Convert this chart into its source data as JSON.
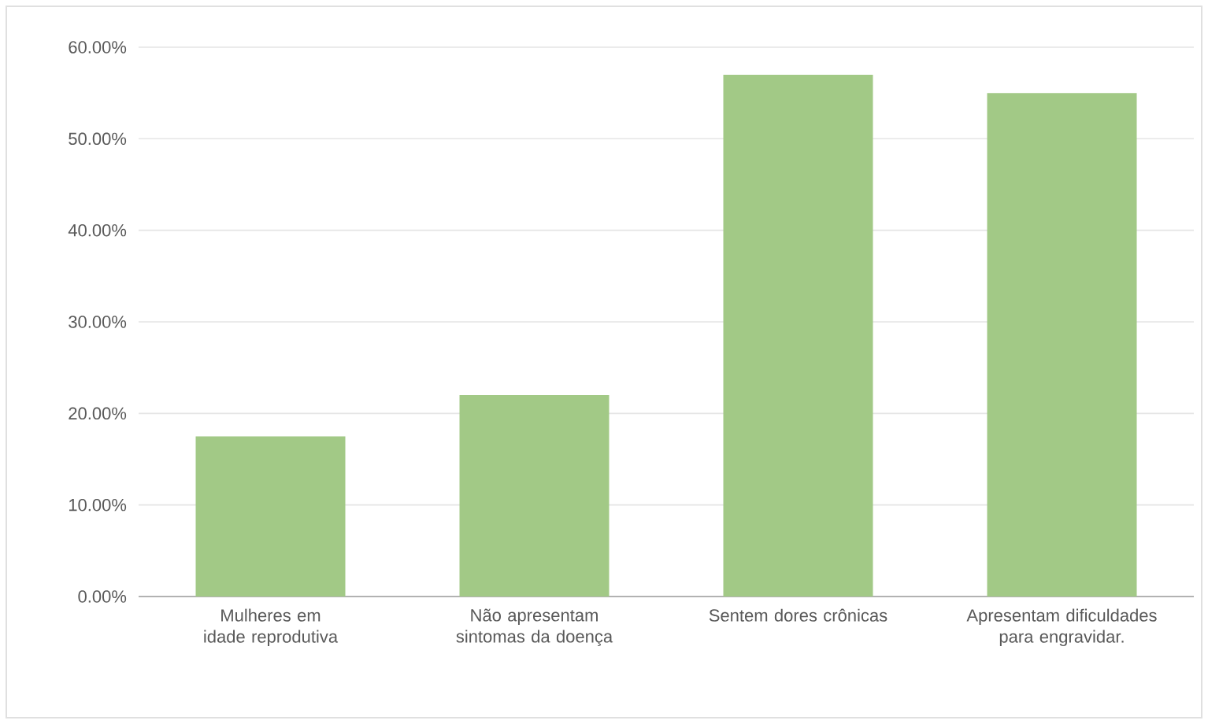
{
  "chart_data": {
    "type": "bar",
    "categories": [
      "Mulheres em idade reprodutiva",
      "Não apresentam sintomas da doença",
      "Sentem dores crônicas",
      "Apresentam dificuldades para engravidar."
    ],
    "values": [
      17.5,
      22,
      57,
      55
    ],
    "color": "#a2c986",
    "ylim": [
      0,
      60
    ],
    "yticks": [
      {
        "value": 0,
        "label": "0.00%"
      },
      {
        "value": 10,
        "label": "10.00%"
      },
      {
        "value": 20,
        "label": "20.00%"
      },
      {
        "value": 30,
        "label": "30.00%"
      },
      {
        "value": 40,
        "label": "40.00%"
      },
      {
        "value": 50,
        "label": "50.00%"
      },
      {
        "value": 60,
        "label": "60.00%"
      }
    ],
    "grid": "y"
  }
}
